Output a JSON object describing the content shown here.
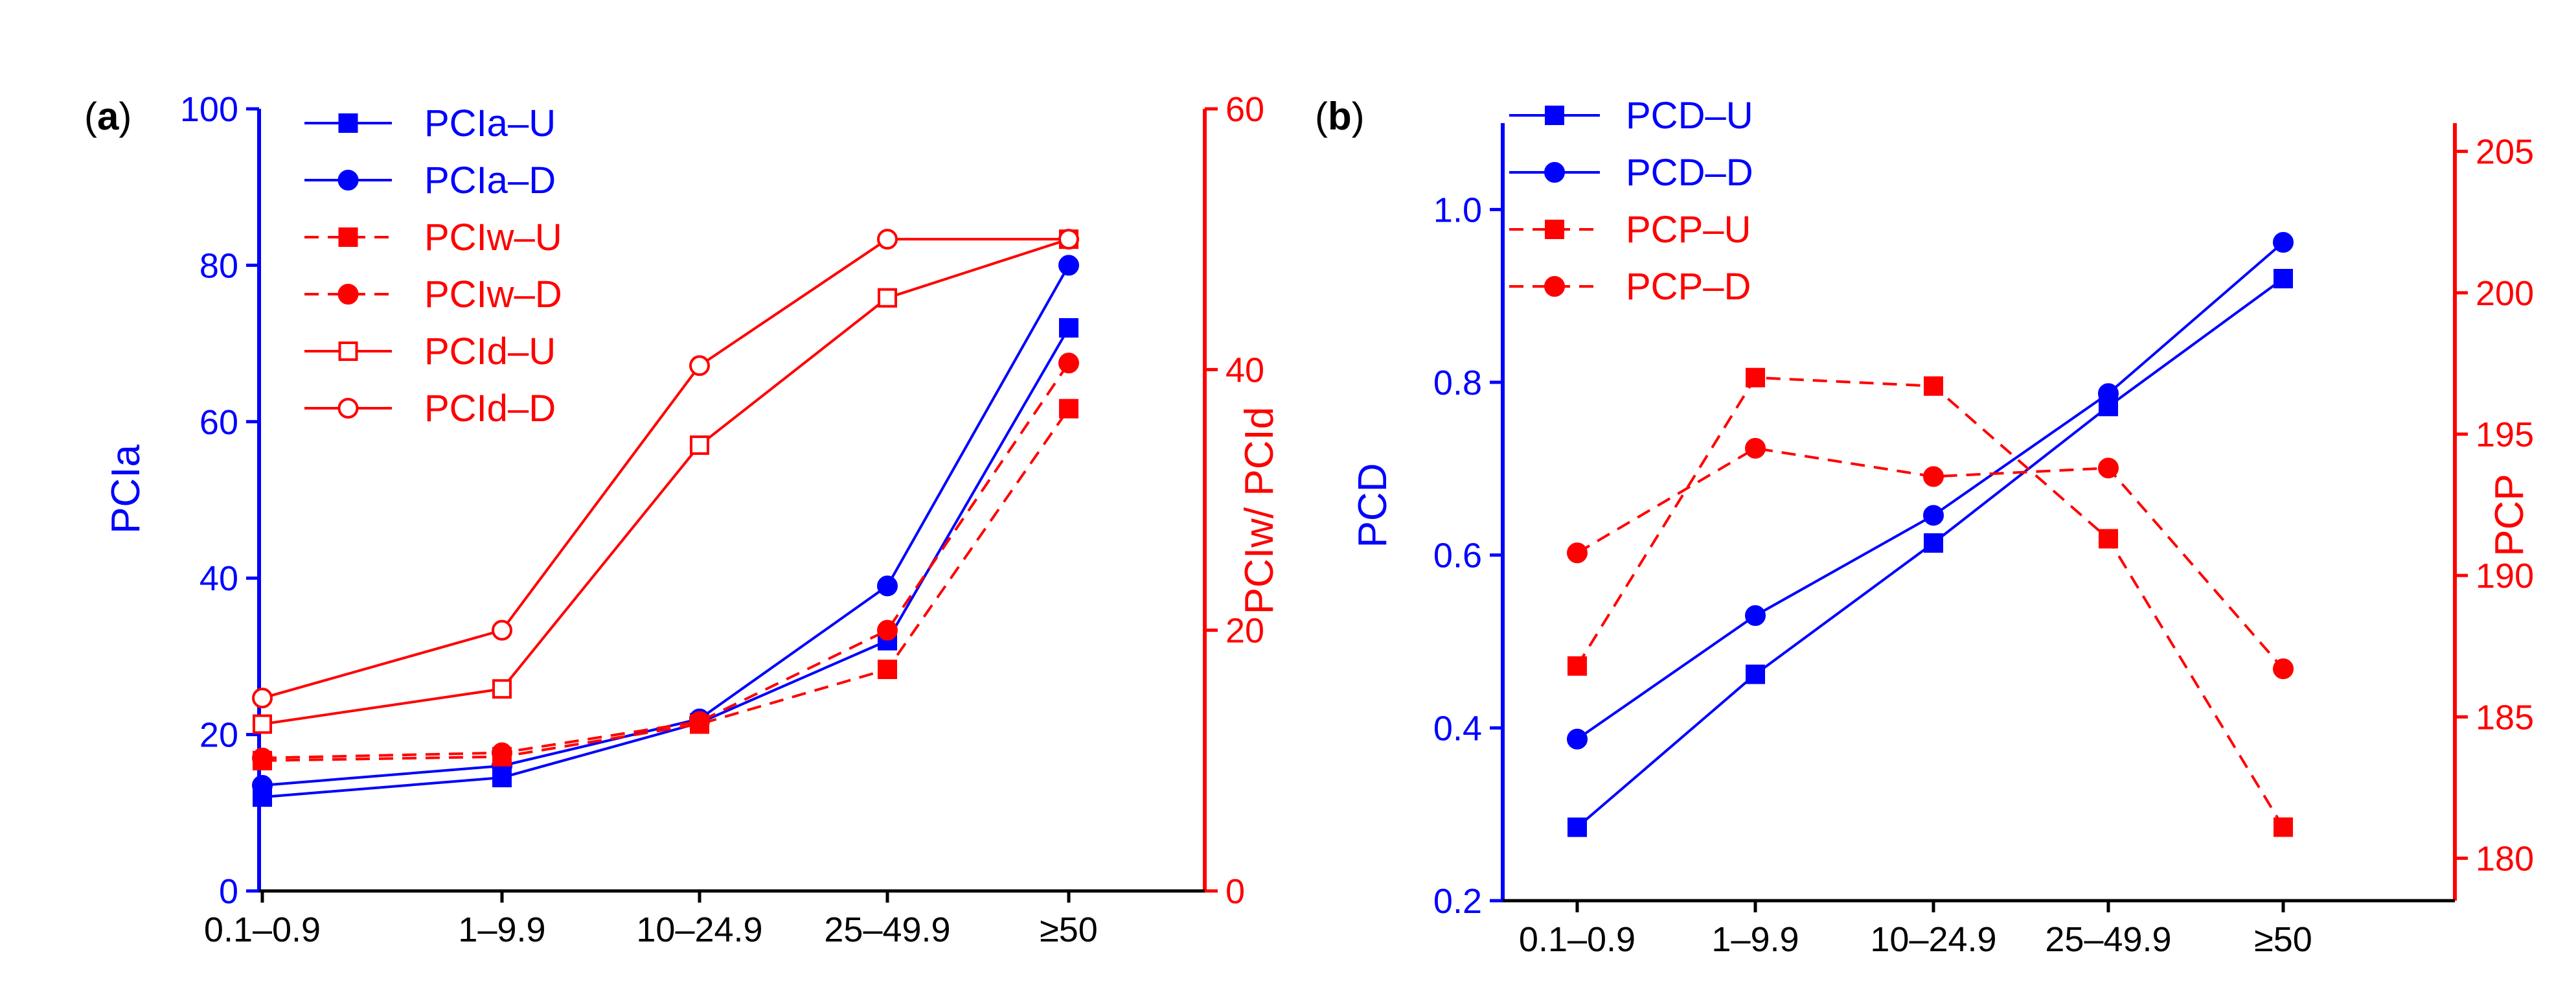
{
  "colors": {
    "left": "#0000ff",
    "right": "#ff0000",
    "xaxis": "#000000"
  },
  "chart_data": [
    {
      "id": "a",
      "type": "line",
      "panel_label": {
        "open": "(",
        "letter": "a",
        "close": ")"
      },
      "categories": [
        "0.1–0.9",
        "1–9.9",
        "10–24.9",
        "25–49.9",
        "≥50"
      ],
      "y_left": {
        "label": "PCIa",
        "range": [
          0,
          100
        ],
        "ticks": [
          0,
          20,
          40,
          60,
          80,
          100
        ]
      },
      "y_right": {
        "label": "PCIw/ PCId",
        "range": [
          0,
          60
        ],
        "ticks": [
          0,
          20,
          40,
          60
        ]
      },
      "legend_position": "top-left",
      "series": [
        {
          "name": "PCIa–U",
          "axis": "left",
          "color": "#0000ff",
          "dash": false,
          "marker": "square",
          "filled": true,
          "values": [
            12,
            14.5,
            21.5,
            32,
            72
          ]
        },
        {
          "name": "PCIa–D",
          "axis": "left",
          "color": "#0000ff",
          "dash": false,
          "marker": "circle",
          "filled": true,
          "values": [
            13.5,
            16,
            22,
            39,
            80
          ]
        },
        {
          "name": "PCIw–U",
          "axis": "right",
          "color": "#ff0000",
          "dash": true,
          "marker": "square",
          "filled": true,
          "values": [
            10,
            10.3,
            12.8,
            17,
            37
          ]
        },
        {
          "name": "PCIw–D",
          "axis": "right",
          "color": "#ff0000",
          "dash": true,
          "marker": "circle",
          "filled": true,
          "values": [
            10.2,
            10.6,
            13,
            20,
            40.5
          ]
        },
        {
          "name": "PCId–U",
          "axis": "right",
          "color": "#ff0000",
          "dash": false,
          "marker": "square",
          "filled": false,
          "values": [
            12.8,
            15.5,
            34.2,
            45.5,
            50
          ]
        },
        {
          "name": "PCId–D",
          "axis": "right",
          "color": "#ff0000",
          "dash": false,
          "marker": "circle",
          "filled": false,
          "values": [
            14.8,
            20,
            40.3,
            50,
            50
          ]
        }
      ]
    },
    {
      "id": "b",
      "type": "line",
      "panel_label": {
        "open": "(",
        "letter": "b",
        "close": ")"
      },
      "categories": [
        "0.1–0.9",
        "1–9.9",
        "10–24.9",
        "25–49.9",
        "≥50"
      ],
      "y_left": {
        "label": "PCD",
        "range": [
          0.2,
          1.1
        ],
        "ticks": [
          0.2,
          0.4,
          0.6,
          0.8,
          1.0
        ],
        "tick_labels": [
          "0.2",
          "0.4",
          "0.6",
          "0.8",
          "1.0"
        ]
      },
      "y_right": {
        "label": "PCP",
        "range": [
          178.5,
          206
        ],
        "ticks": [
          180,
          185,
          190,
          195,
          200,
          205
        ]
      },
      "legend_position": "top-left",
      "series": [
        {
          "name": "PCD–U",
          "axis": "left",
          "color": "#0000ff",
          "dash": false,
          "marker": "square",
          "filled": true,
          "values": [
            0.285,
            0.462,
            0.614,
            0.772,
            0.92
          ]
        },
        {
          "name": "PCD–D",
          "axis": "left",
          "color": "#0000ff",
          "dash": false,
          "marker": "circle",
          "filled": true,
          "values": [
            0.387,
            0.53,
            0.646,
            0.787,
            0.962
          ]
        },
        {
          "name": "PCP–U",
          "axis": "right",
          "color": "#ff0000",
          "dash": true,
          "marker": "square",
          "filled": true,
          "values": [
            186.8,
            197,
            196.7,
            191.3,
            181.1
          ]
        },
        {
          "name": "PCP–D",
          "axis": "right",
          "color": "#ff0000",
          "dash": true,
          "marker": "circle",
          "filled": true,
          "values": [
            190.8,
            194.5,
            193.5,
            193.8,
            186.7
          ]
        }
      ]
    }
  ]
}
